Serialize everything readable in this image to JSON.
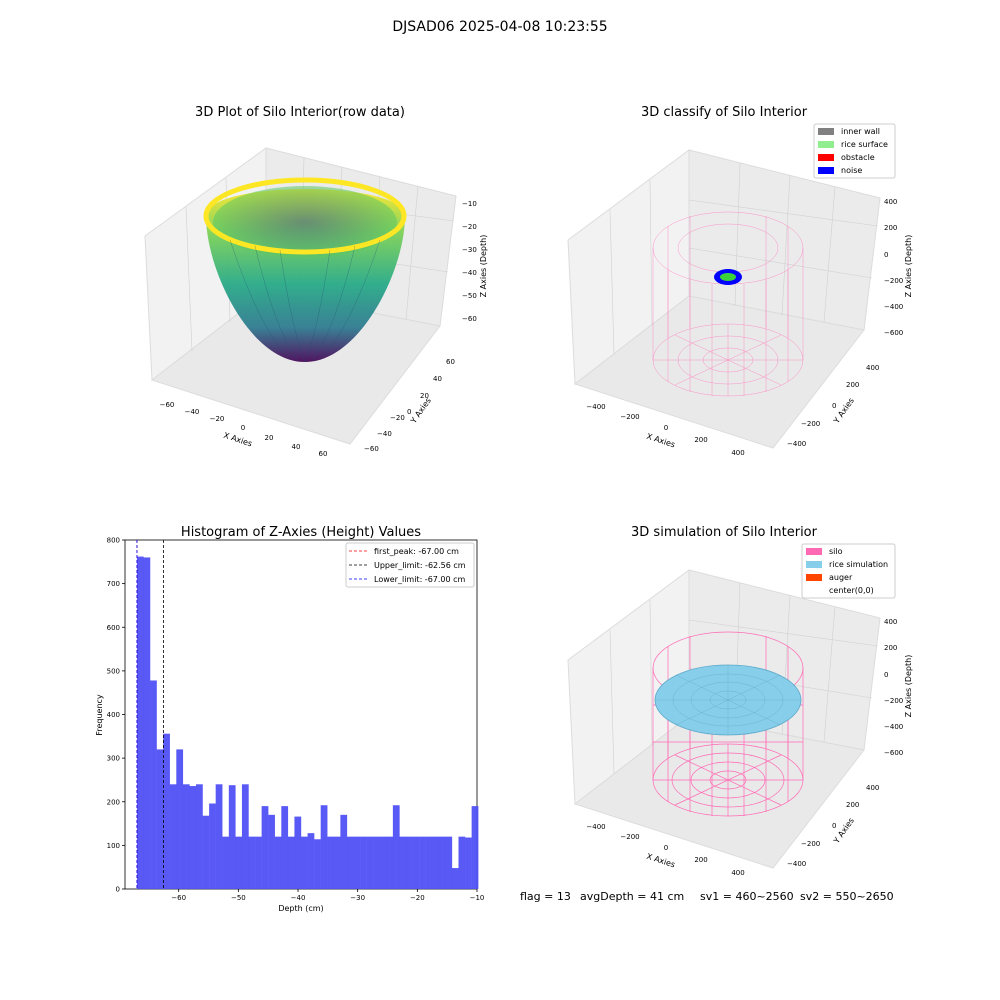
{
  "suptitle": "DJSAD06 2025-04-08 10:23:55",
  "panels": {
    "raw": {
      "title": "3D Plot of Silo Interior(row data)",
      "xlabel": "X Axies",
      "ylabel": "Y Axies",
      "zlabel": "Z Axies (Depth)",
      "xticks": [
        "−60",
        "−40",
        "−20",
        "0",
        "20",
        "40",
        "60"
      ],
      "yticks": [
        "60",
        "40",
        "20",
        "0",
        "−20",
        "−40",
        "−60"
      ],
      "zticks": [
        "−10",
        "−20",
        "−30",
        "−40",
        "−50",
        "−60"
      ]
    },
    "classify": {
      "title": "3D classify of Silo Interior",
      "xlabel": "X Axies",
      "ylabel": "Y Axies",
      "zlabel": "Z Axies (Depth)",
      "xticks": [
        "−400",
        "−200",
        "0",
        "200",
        "400"
      ],
      "yticks": [
        "400",
        "200",
        "0",
        "−200",
        "−400"
      ],
      "zticks": [
        "400",
        "200",
        "0",
        "−200",
        "−400",
        "−600"
      ],
      "legend": [
        {
          "label": "inner wall",
          "color": "#808080"
        },
        {
          "label": "rice surface",
          "color": "#90ee90"
        },
        {
          "label": "obstacle",
          "color": "#ff0000"
        },
        {
          "label": "noise",
          "color": "#0000ff"
        }
      ]
    },
    "simulation": {
      "title": "3D simulation of Silo Interior",
      "xlabel": "X Axies",
      "ylabel": "Y Axies",
      "zlabel": "Z Axies (Depth)",
      "xticks": [
        "−400",
        "−200",
        "0",
        "200",
        "400"
      ],
      "yticks": [
        "400",
        "200",
        "0",
        "−200",
        "−400"
      ],
      "zticks": [
        "400",
        "200",
        "0",
        "−200",
        "−400",
        "−600"
      ],
      "legend": [
        {
          "label": "silo",
          "color": "#ff69b4"
        },
        {
          "label": "rice simulation",
          "color": "#87ceeb"
        },
        {
          "label": "auger",
          "color": "#ff4500"
        },
        {
          "label": "center(0,0)",
          "color": ""
        }
      ]
    }
  },
  "chart_data": {
    "type": "bar",
    "title": "Histogram of Z-Axies (Height) Values",
    "xlabel": "Depth (cm)",
    "ylabel": "Frequency",
    "xlim": [
      -69,
      -10
    ],
    "ylim": [
      0,
      800
    ],
    "xticks": [
      -60,
      -50,
      -40,
      -30,
      -20,
      -10
    ],
    "yticks": [
      0,
      100,
      200,
      300,
      400,
      500,
      600,
      700,
      800
    ],
    "bar_color": "#5050f5",
    "bin_start": -67.0,
    "bin_width": 1.1,
    "values": [
      762,
      760,
      478,
      320,
      356,
      240,
      320,
      240,
      236,
      240,
      168,
      196,
      240,
      120,
      238,
      120,
      240,
      120,
      120,
      190,
      170,
      120,
      190,
      120,
      166,
      120,
      128,
      114,
      192,
      120,
      120,
      170,
      120,
      120,
      120,
      120,
      120,
      120,
      120,
      192,
      120,
      120,
      120,
      120,
      120,
      120,
      120,
      120,
      48,
      120,
      118,
      190
    ],
    "lines": [
      {
        "label": "first_peak: -67.00 cm",
        "x": -67.0,
        "color": "#ff0000"
      },
      {
        "label": "Upper_limit: -62.56 cm",
        "x": -62.56,
        "color": "#000000"
      },
      {
        "label": "Lower_limit: -67.00 cm",
        "x": -67.0,
        "color": "#0000ff"
      }
    ]
  },
  "footer": {
    "flag": "flag = 13",
    "avg": "avgDepth = 41 cm",
    "sv1": "sv1 = 460~2560",
    "sv2": "sv2 = 550~2650"
  }
}
